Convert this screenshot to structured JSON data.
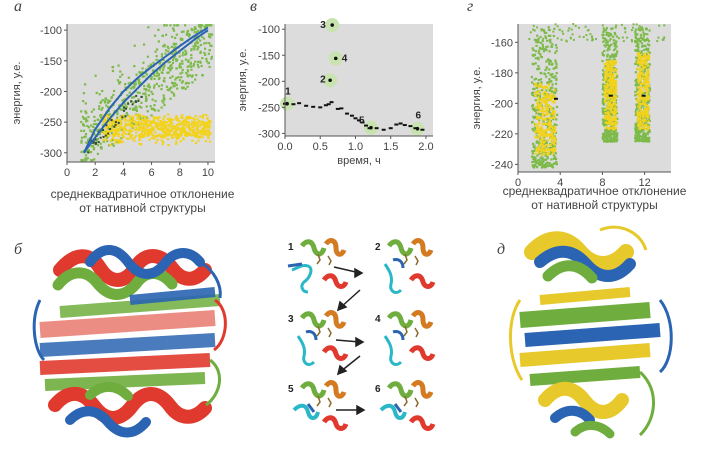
{
  "panel_letters": {
    "a": "а",
    "b": "б",
    "v": "в",
    "g": "г",
    "d": "д"
  },
  "captions": {
    "rmsd_line1": "среднеквадратичное отклонение",
    "rmsd_line2": "от нативной структуры",
    "rmsd_g_line1": "среднеквадратичное отклонение",
    "rmsd_g_line2": "от нативной структуры"
  },
  "chart_data": [
    {
      "id": "a",
      "type": "scatter",
      "ylabel": "энергия, у.е.",
      "xlabel": "среднеквадратичное отклонение от нативной структуры",
      "xlim": [
        0,
        10.5
      ],
      "ylim": [
        -315,
        -90
      ],
      "xticks": [
        0,
        2,
        4,
        6,
        8,
        10
      ],
      "yticks": [
        -100,
        -150,
        -200,
        -250,
        -300
      ],
      "series": [
        {
          "color": "#7dba4a"
        },
        {
          "color": "#f3d21d"
        },
        {
          "color": "#2a64b2",
          "x": [
            1.2,
            2,
            3,
            4,
            5,
            6,
            7,
            8,
            9,
            10
          ],
          "y": [
            -300,
            -275,
            -245,
            -218,
            -195,
            -172,
            -152,
            -134,
            -116,
            -100
          ]
        },
        {
          "color": "#2a64b2",
          "x": [
            1.2,
            2,
            3,
            4,
            5,
            6,
            7,
            8,
            9,
            10
          ],
          "y": [
            -300,
            -262,
            -228,
            -200,
            -178,
            -160,
            -143,
            -126,
            -110,
            -96
          ]
        }
      ]
    },
    {
      "id": "v",
      "type": "scatter",
      "ylabel": "энергия, у.е.",
      "xlabel": "время, ч",
      "xlim": [
        0,
        2.1
      ],
      "ylim": [
        -305,
        -90
      ],
      "xticks": [
        0,
        0.5,
        1,
        1.5,
        2
      ],
      "xticklabels": [
        "0.0",
        "0.5",
        "1.0",
        "1.5",
        "2.0"
      ],
      "yticks": [
        -100,
        -150,
        -200,
        -250,
        -300
      ],
      "points": [
        {
          "x": 0.03,
          "y": -243,
          "label": "1"
        },
        {
          "x": 0.64,
          "y": -198,
          "label": "2"
        },
        {
          "x": 0.67,
          "y": -92,
          "label": "3"
        },
        {
          "x": 0.72,
          "y": -156,
          "label": "4"
        },
        {
          "x": 1.22,
          "y": -289,
          "label": "5"
        },
        {
          "x": 1.88,
          "y": -291,
          "label": "6"
        }
      ],
      "trace": [
        [
          0.0,
          -243
        ],
        [
          0.12,
          -244
        ],
        [
          0.2,
          -242
        ],
        [
          0.3,
          -247
        ],
        [
          0.4,
          -249
        ],
        [
          0.5,
          -250
        ],
        [
          0.58,
          -246
        ],
        [
          0.62,
          -244
        ],
        [
          0.66,
          -240
        ],
        [
          0.75,
          -253
        ],
        [
          0.8,
          -252
        ],
        [
          0.88,
          -262
        ],
        [
          0.95,
          -266
        ],
        [
          1.0,
          -271
        ],
        [
          1.05,
          -275
        ],
        [
          1.1,
          -279
        ],
        [
          1.15,
          -285
        ],
        [
          1.2,
          -290
        ],
        [
          1.3,
          -290
        ],
        [
          1.4,
          -293
        ],
        [
          1.5,
          -290
        ],
        [
          1.58,
          -283
        ],
        [
          1.64,
          -281
        ],
        [
          1.7,
          -284
        ],
        [
          1.78,
          -286
        ],
        [
          1.85,
          -290
        ],
        [
          1.95,
          -293
        ]
      ]
    },
    {
      "id": "g",
      "type": "scatter",
      "ylabel": "энергия, у.е.",
      "xlabel": "среднеквадратичное отклонение от нативной структуры",
      "xlim": [
        0,
        14.5
      ],
      "ylim": [
        -245,
        -148
      ],
      "xticks": [
        0,
        4,
        8,
        12
      ],
      "yticks": [
        -160,
        -180,
        -200,
        -220,
        -240
      ],
      "series": [
        {
          "color": "#7dba4a"
        },
        {
          "color": "#f3d21d"
        }
      ]
    }
  ],
  "figure_labels": {
    "step_labels": [
      "1",
      "2",
      "3",
      "4",
      "5",
      "6"
    ]
  },
  "colors": {
    "green": "#7dba4a",
    "yellow": "#f3d21d",
    "blue": "#2a64b2",
    "red": "#e03a2e",
    "highlight": "#c9e3b0",
    "cyan": "#2ab8c9",
    "orange": "#d47a20"
  }
}
